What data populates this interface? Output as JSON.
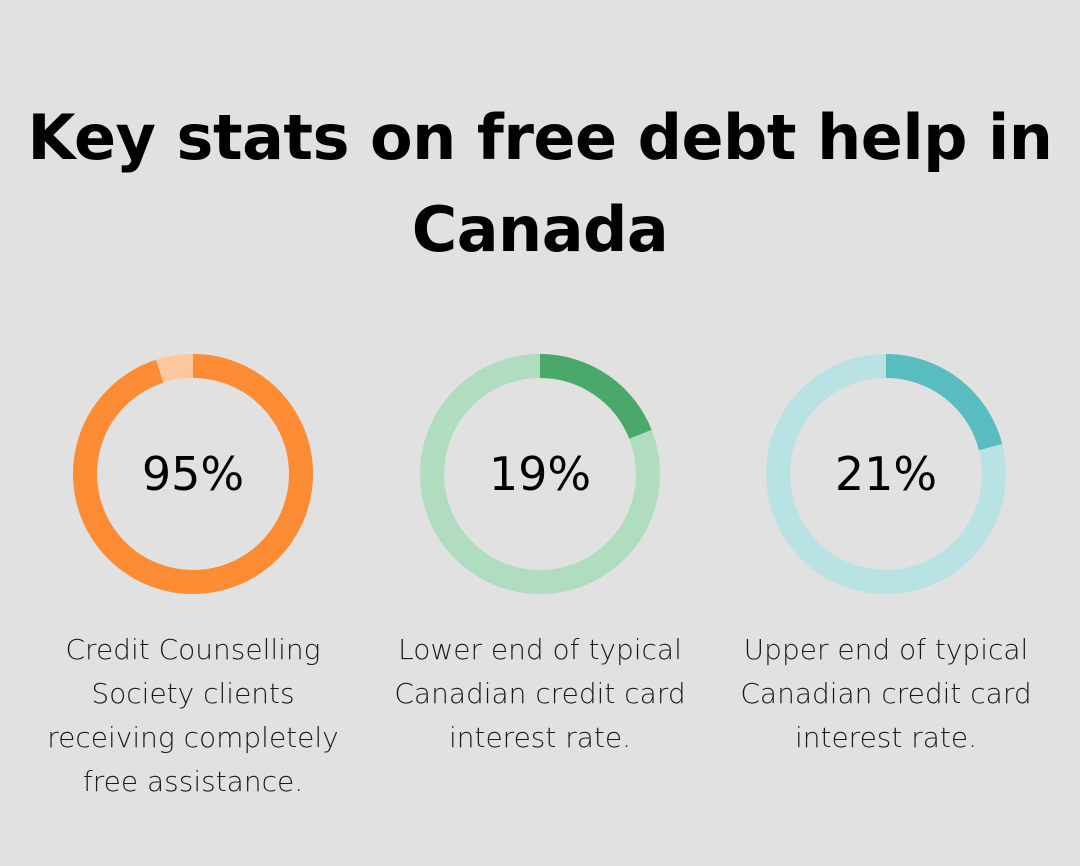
{
  "title": "Key stats on free debt help in Canada",
  "chart_data": [
    {
      "type": "pie",
      "value": 95,
      "label": "95%",
      "description": "Credit Counselling Society clients receiving completely free assistance.",
      "color": "#fd8c34",
      "track_color": "#fec89f"
    },
    {
      "type": "pie",
      "value": 19,
      "label": "19%",
      "description": "Lower end of typical Canadian credit card interest rate.",
      "color": "#4aa86a",
      "track_color": "#b0dcc0"
    },
    {
      "type": "pie",
      "value": 21,
      "label": "21%",
      "description": "Upper end of typical Canadian credit card interest rate.",
      "color": "#58bcc1",
      "track_color": "#b9e2e4"
    }
  ]
}
